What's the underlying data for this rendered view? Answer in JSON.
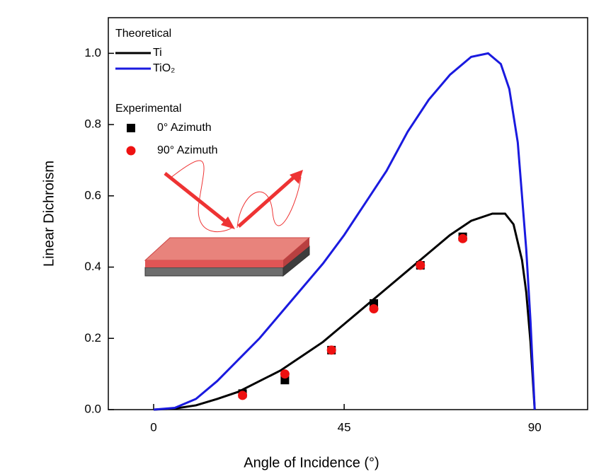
{
  "chart_data": {
    "type": "line",
    "x_label": "Angle of Incidence (°)",
    "y_label": "Linear Dichroism",
    "xlim": [
      -10.7,
      102.5
    ],
    "ylim": [
      0,
      1.1
    ],
    "xticks": [
      0,
      45,
      90
    ],
    "yticks": [
      {
        "value": 0,
        "label": "0.0"
      },
      0.2,
      0.4,
      0.6,
      0.8,
      {
        "value": 1,
        "label": "1.0"
      }
    ],
    "legend_titles": [
      "Theoretical",
      "Experimental"
    ],
    "series": [
      {
        "name": "Ti",
        "type": "line",
        "color": "#000000",
        "x": [
          0,
          5,
          10,
          15,
          20,
          25,
          30,
          35,
          40,
          45,
          50,
          55,
          60,
          65,
          70,
          75,
          80,
          83,
          85,
          87,
          88,
          89,
          90
        ],
        "values": [
          0,
          0.003,
          0.012,
          0.03,
          0.05,
          0.08,
          0.11,
          0.15,
          0.19,
          0.24,
          0.29,
          0.34,
          0.39,
          0.44,
          0.49,
          0.53,
          0.55,
          0.55,
          0.52,
          0.42,
          0.33,
          0.19,
          0
        ]
      },
      {
        "name": "TiO₂",
        "type": "line",
        "color": "#1a1adf",
        "x": [
          0,
          5,
          10,
          15,
          20,
          25,
          30,
          35,
          40,
          45,
          50,
          55,
          60,
          65,
          70,
          75,
          79,
          82,
          84,
          86,
          88,
          89,
          90
        ],
        "values": [
          0,
          0.005,
          0.03,
          0.08,
          0.14,
          0.2,
          0.27,
          0.34,
          0.41,
          0.49,
          0.58,
          0.67,
          0.78,
          0.87,
          0.94,
          0.99,
          1.0,
          0.97,
          0.9,
          0.75,
          0.45,
          0.25,
          0
        ]
      },
      {
        "name": "0° Azimuth",
        "type": "scatter",
        "marker": "square",
        "color": "#000000",
        "x": [
          21,
          31,
          42,
          52,
          63,
          73
        ],
        "values": [
          0.045,
          0.083,
          0.167,
          0.298,
          0.405,
          0.485
        ]
      },
      {
        "name": "90° Azimuth",
        "type": "scatter",
        "marker": "circle",
        "color": "#ee1111",
        "x": [
          21,
          31,
          42,
          52,
          63,
          73
        ],
        "values": [
          0.04,
          0.1,
          0.167,
          0.283,
          0.405,
          0.48
        ]
      }
    ]
  }
}
